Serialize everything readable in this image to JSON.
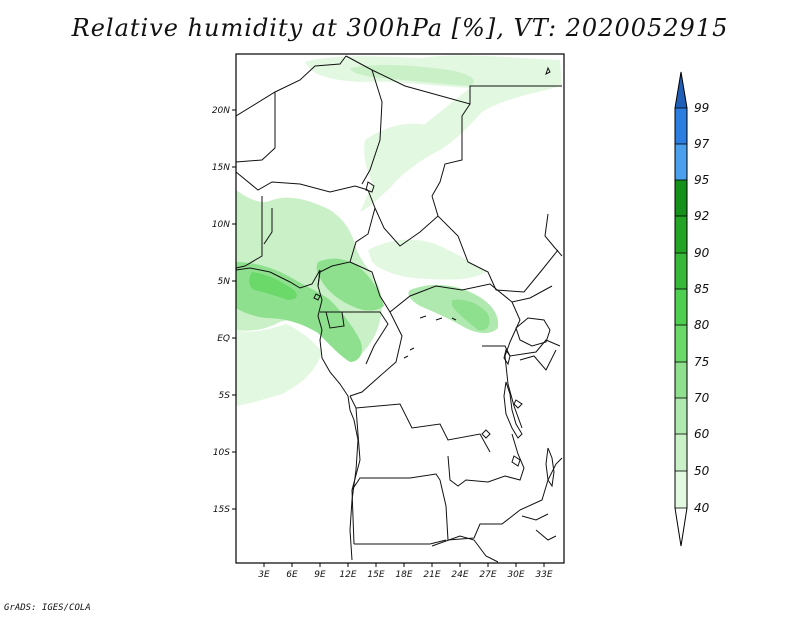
{
  "title": "Relative humidity at 300hPa [%], VT: 2020052915",
  "credit": "GrADS: IGES/COLA",
  "map": {
    "variable": "Relative humidity",
    "level": "300hPa",
    "units": "%",
    "valid_time": "2020052915",
    "lat_labels": [
      "20N",
      "15N",
      "10N",
      "5N",
      "EQ",
      "5S",
      "10S",
      "15S"
    ],
    "lon_labels": [
      "3E",
      "6E",
      "9E",
      "12E",
      "15E",
      "18E",
      "21E",
      "24E",
      "27E",
      "30E",
      "33E"
    ]
  },
  "colorbar": {
    "levels": [
      "99",
      "97",
      "95",
      "92",
      "90",
      "85",
      "80",
      "75",
      "70",
      "60",
      "50",
      "40"
    ],
    "colors": {
      "above_99": "#1f5fb8",
      "97_99": "#2b7de0",
      "95_97": "#4aa0ec",
      "92_95": "#15901b",
      "90_92": "#24a424",
      "85_90": "#38b838",
      "80_85": "#4fcf4f",
      "75_80": "#6ad96a",
      "70_75": "#8ee08e",
      "60_70": "#afe9af",
      "50_60": "#caf0c8",
      "40_50": "#e3f8e1",
      "below_40": "#ffffff"
    }
  }
}
